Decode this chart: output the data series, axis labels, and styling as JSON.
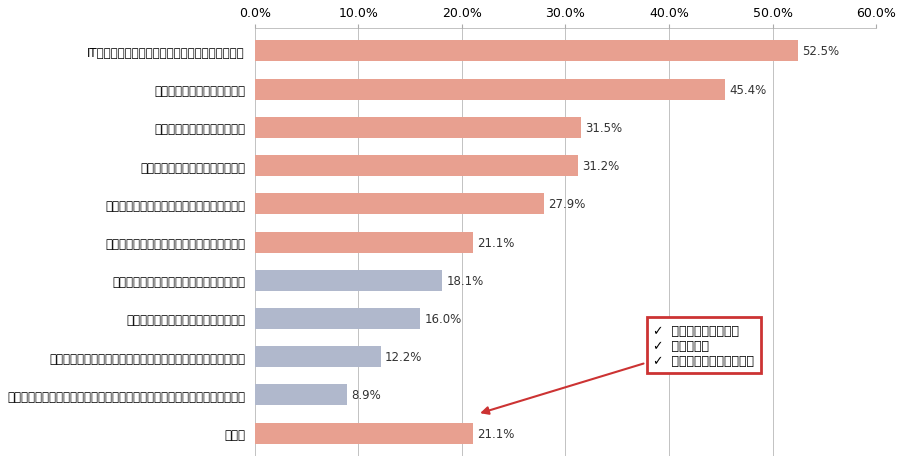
{
  "categories": [
    "IT機器やインフラに関するコストが増加するため",
    "情報漏洩のリスクが高いため",
    "端末の管理が煩雑になるため",
    "端末を紛失するリスクが高いため",
    "情報セキュリティルールの整備が難しいため",
    "ウィルス・ワームに感染する懸念が高いため",
    "端末への不正アクセスのリスクが高いため",
    "ソフトウェアの管理が煩雑になるため",
    "渉外端末として利用する時、外付プリンターが必要となるため",
    "渉外端末として利用する時、遠隔の磁気ストライプの読取りができないため",
    "その他"
  ],
  "values": [
    52.5,
    45.4,
    31.5,
    31.2,
    27.9,
    21.1,
    18.1,
    16.0,
    12.2,
    8.9,
    21.1
  ],
  "bar_colors_blue": [
    false,
    false,
    false,
    false,
    false,
    false,
    true,
    true,
    true,
    true,
    false
  ],
  "salmon_color": "#E8A090",
  "blue_color": "#B0B8CC",
  "xlim": [
    0,
    60
  ],
  "xticks": [
    0,
    10,
    20,
    30,
    40,
    50,
    60
  ],
  "xtick_labels": [
    "0.0%",
    "10.0%",
    "20.0%",
    "30.0%",
    "40.0%",
    "50.0%",
    "60.0%"
  ],
  "annotation_lines": [
    "✓  業務上の必要がない",
    "✓  費用対効果",
    "✓  体制が整っていない　等"
  ],
  "annotation_border_color": "#CC3333",
  "bg_color": "#FFFFFF",
  "label_fontsize": 8.5,
  "value_fontsize": 8.5,
  "tick_fontsize": 9
}
